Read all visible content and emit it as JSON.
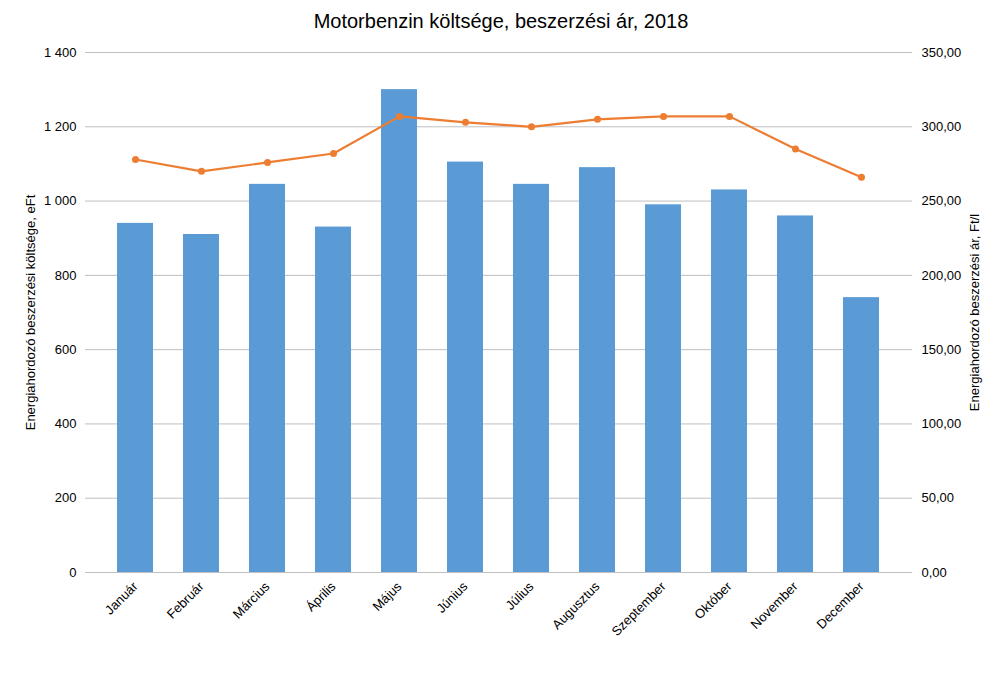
{
  "chart_data": {
    "type": "bar",
    "title": "Motorbenzin költsége, beszerzési ár, 2018",
    "categories": [
      "Január",
      "Február",
      "Március",
      "Április",
      "Május",
      "Június",
      "Július",
      "Augusztus",
      "Szeptember",
      "Október",
      "November",
      "December"
    ],
    "series": [
      {
        "type": "bar",
        "color": "#5B9BD5",
        "values": [
          940,
          910,
          1045,
          930,
          1300,
          1105,
          1045,
          1090,
          990,
          1030,
          960,
          740
        ]
      },
      {
        "type": "line",
        "color": "#ED7D31",
        "marker": "circle",
        "axis": "y2",
        "values": [
          278,
          270,
          276,
          282,
          307,
          303,
          300,
          305,
          307,
          307,
          285,
          266
        ]
      }
    ],
    "ylabel": "Energiahordozó beszerzési költsége, eFt",
    "y2label": "Energiahordozó beszerzési ár, Ft/l",
    "ylim": [
      0,
      1400
    ],
    "yticks": [
      0,
      200,
      400,
      600,
      800,
      {
        "value": 1000,
        "label": "1 000"
      },
      {
        "value": 1200,
        "label": "1 200"
      },
      {
        "value": 1400,
        "label": "1 400"
      }
    ],
    "y2lim": [
      0,
      350
    ],
    "y2ticks": [
      {
        "value": 0,
        "label": "0,00"
      },
      {
        "value": 50,
        "label": "50,00"
      },
      {
        "value": 100,
        "label": "100,00"
      },
      {
        "value": 150,
        "label": "150,00"
      },
      {
        "value": 200,
        "label": "200,00"
      },
      {
        "value": 250,
        "label": "250,00"
      },
      {
        "value": 300,
        "label": "300,00"
      },
      {
        "value": 350,
        "label": "350,00"
      }
    ],
    "grid": true
  }
}
